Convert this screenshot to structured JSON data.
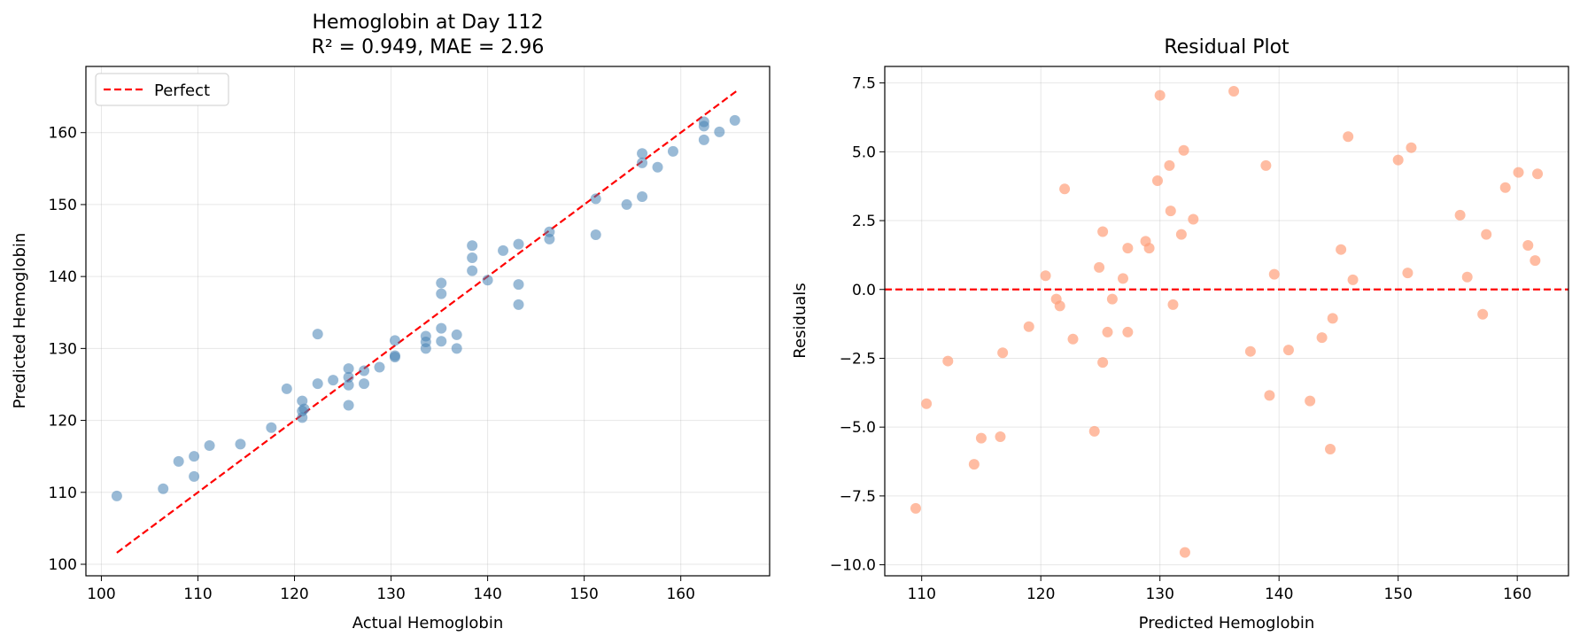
{
  "chart_data": [
    {
      "type": "scatter",
      "title": "Hemoglobin at Day 112",
      "subtitle": "R² = 0.949, MAE = 2.96",
      "xlabel": "Actual Hemoglobin",
      "ylabel": "Predicted Hemoglobin",
      "xlim": [
        98.4,
        169.2
      ],
      "ylim": [
        98.4,
        169.2
      ],
      "xticks": [
        100,
        110,
        120,
        130,
        140,
        150,
        160
      ],
      "yticks": [
        100,
        110,
        120,
        130,
        140,
        150,
        160
      ],
      "grid": true,
      "legend": {
        "placement": "top-left",
        "entries": [
          "Perfect"
        ]
      },
      "reference_line": {
        "name": "Perfect",
        "from": [
          101.6,
          101.6
        ],
        "to": [
          166.0,
          166.0
        ],
        "color": "#ff0000",
        "style": "dashed"
      },
      "point_color": "#4682b4",
      "points": [
        [
          101.6,
          109.5
        ],
        [
          106.4,
          110.5
        ],
        [
          108.0,
          114.3
        ],
        [
          109.6,
          115.0
        ],
        [
          109.6,
          112.2
        ],
        [
          111.2,
          116.5
        ],
        [
          114.4,
          116.7
        ],
        [
          117.6,
          119.0
        ],
        [
          119.2,
          124.4
        ],
        [
          120.8,
          122.7
        ],
        [
          120.8,
          121.3
        ],
        [
          120.8,
          120.4
        ],
        [
          121.0,
          121.6
        ],
        [
          122.4,
          132.0
        ],
        [
          122.4,
          125.1
        ],
        [
          124.0,
          125.6
        ],
        [
          125.6,
          127.2
        ],
        [
          125.6,
          126.0
        ],
        [
          125.6,
          124.9
        ],
        [
          125.6,
          122.1
        ],
        [
          127.2,
          126.9
        ],
        [
          127.2,
          125.1
        ],
        [
          128.8,
          127.4
        ],
        [
          130.4,
          131.1
        ],
        [
          130.4,
          129.0
        ],
        [
          130.4,
          128.8
        ],
        [
          133.6,
          131.7
        ],
        [
          133.6,
          130.9
        ],
        [
          133.6,
          130.0
        ],
        [
          135.2,
          139.1
        ],
        [
          135.2,
          137.6
        ],
        [
          135.2,
          132.8
        ],
        [
          135.2,
          131.0
        ],
        [
          136.8,
          131.9
        ],
        [
          136.8,
          130.0
        ],
        [
          138.4,
          144.3
        ],
        [
          138.4,
          142.6
        ],
        [
          138.4,
          140.8
        ],
        [
          140.0,
          139.5
        ],
        [
          141.6,
          143.6
        ],
        [
          143.2,
          144.5
        ],
        [
          143.2,
          138.9
        ],
        [
          143.2,
          136.1
        ],
        [
          146.4,
          146.2
        ],
        [
          146.4,
          145.2
        ],
        [
          151.2,
          150.8
        ],
        [
          151.2,
          145.8
        ],
        [
          154.4,
          150.0
        ],
        [
          156.0,
          157.1
        ],
        [
          156.0,
          155.8
        ],
        [
          156.0,
          151.1
        ],
        [
          157.6,
          155.2
        ],
        [
          159.2,
          157.4
        ],
        [
          162.4,
          161.5
        ],
        [
          162.4,
          160.9
        ],
        [
          162.4,
          159.0
        ],
        [
          164.0,
          160.1
        ],
        [
          165.6,
          161.7
        ]
      ]
    },
    {
      "type": "scatter",
      "title": "Residual Plot",
      "xlabel": "Predicted Hemoglobin",
      "ylabel": "Residuals",
      "xlim": [
        106.9,
        164.3
      ],
      "ylim": [
        -10.4,
        8.1
      ],
      "xticks": [
        110,
        120,
        130,
        140,
        150,
        160
      ],
      "yticks": [
        -10.0,
        -7.5,
        -5.0,
        -2.5,
        0.0,
        2.5,
        5.0,
        7.5
      ],
      "ytick_labels": [
        "−10.0",
        "−7.5",
        "−5.0",
        "−2.5",
        "0.0",
        "2.5",
        "5.0",
        "7.5"
      ],
      "grid": true,
      "zero_line": {
        "y": 0,
        "color": "#ff0000",
        "style": "dashed"
      },
      "point_color": "#ffa07a",
      "points": [
        [
          109.5,
          -7.95
        ],
        [
          110.4,
          -4.15
        ],
        [
          112.2,
          -2.6
        ],
        [
          114.4,
          -6.35
        ],
        [
          115.0,
          -5.4
        ],
        [
          116.6,
          -5.35
        ],
        [
          116.8,
          -2.3
        ],
        [
          119.0,
          -1.35
        ],
        [
          120.4,
          0.5
        ],
        [
          121.3,
          -0.35
        ],
        [
          121.6,
          -0.6
        ],
        [
          122.0,
          3.65
        ],
        [
          122.7,
          -1.8
        ],
        [
          124.5,
          -5.15
        ],
        [
          124.9,
          0.8
        ],
        [
          125.2,
          2.1
        ],
        [
          125.2,
          -2.65
        ],
        [
          125.6,
          -1.55
        ],
        [
          126.0,
          -0.35
        ],
        [
          126.9,
          0.4
        ],
        [
          127.3,
          1.5
        ],
        [
          127.3,
          -1.55
        ],
        [
          128.8,
          1.75
        ],
        [
          129.1,
          1.5
        ],
        [
          129.8,
          3.95
        ],
        [
          130.0,
          7.05
        ],
        [
          130.8,
          4.5
        ],
        [
          130.9,
          2.85
        ],
        [
          131.1,
          -0.55
        ],
        [
          131.8,
          2.0
        ],
        [
          132.0,
          5.05
        ],
        [
          132.1,
          -9.55
        ],
        [
          132.8,
          2.55
        ],
        [
          136.2,
          7.2
        ],
        [
          137.6,
          -2.25
        ],
        [
          138.9,
          4.5
        ],
        [
          139.2,
          -3.85
        ],
        [
          139.6,
          0.55
        ],
        [
          140.8,
          -2.2
        ],
        [
          142.6,
          -4.05
        ],
        [
          143.6,
          -1.75
        ],
        [
          144.3,
          -5.8
        ],
        [
          144.5,
          -1.05
        ],
        [
          145.2,
          1.45
        ],
        [
          145.8,
          5.55
        ],
        [
          146.2,
          0.35
        ],
        [
          150.0,
          4.7
        ],
        [
          150.8,
          0.6
        ],
        [
          151.1,
          5.15
        ],
        [
          155.2,
          2.7
        ],
        [
          155.8,
          0.45
        ],
        [
          157.1,
          -0.9
        ],
        [
          157.4,
          2.0
        ],
        [
          159.0,
          3.7
        ],
        [
          160.1,
          4.25
        ],
        [
          160.9,
          1.6
        ],
        [
          161.5,
          1.05
        ],
        [
          161.7,
          4.2
        ]
      ]
    }
  ]
}
